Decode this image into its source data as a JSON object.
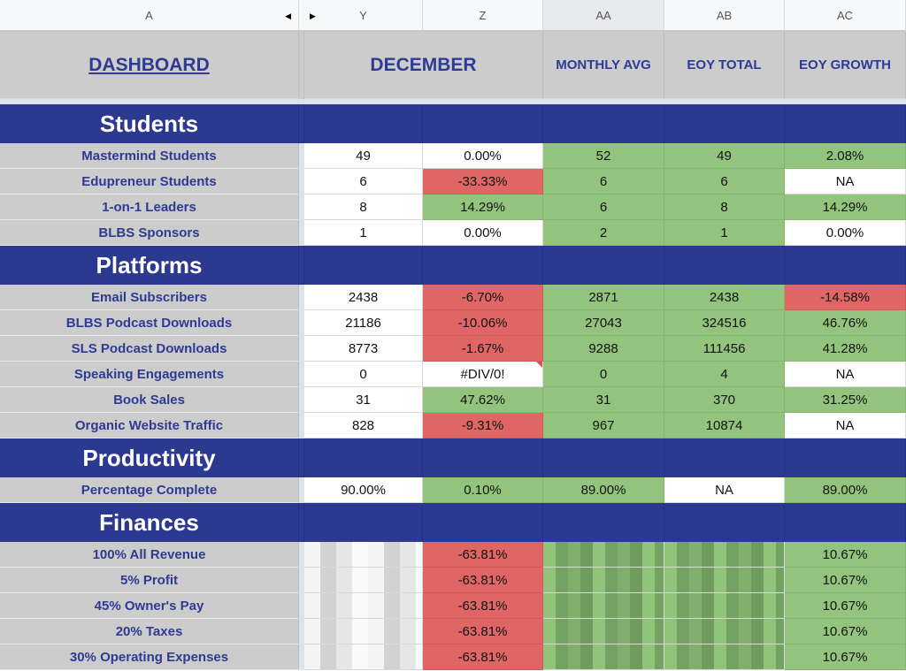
{
  "columns": [
    {
      "key": "A",
      "label": "A"
    },
    {
      "key": "Y",
      "label": "Y"
    },
    {
      "key": "Z",
      "label": "Z"
    },
    {
      "key": "AA",
      "label": "AA",
      "selected": true
    },
    {
      "key": "AB",
      "label": "AB"
    },
    {
      "key": "AC",
      "label": "AC"
    }
  ],
  "header": {
    "dashboard": "DASHBOARD",
    "month": "DECEMBER",
    "monthly_avg": "MONTHLY AVG",
    "eoy_total": "EOY TOTAL",
    "eoy_growth": "EOY GROWTH"
  },
  "colors": {
    "navy": "#2c3991",
    "green": "#93c47d",
    "red": "#e06666",
    "label_gray": "#cccccc",
    "label_text": "#2e3a93"
  },
  "sections": [
    {
      "title": "Students",
      "rows": [
        {
          "label": "Mastermind Students",
          "cells": [
            {
              "v": "49",
              "bg": "w"
            },
            {
              "v": "0.00%",
              "bg": "w"
            },
            {
              "v": "52",
              "bg": "g"
            },
            {
              "v": "49",
              "bg": "g"
            },
            {
              "v": "2.08%",
              "bg": "g"
            }
          ]
        },
        {
          "label": "Edupreneur Students",
          "cells": [
            {
              "v": "6",
              "bg": "w"
            },
            {
              "v": "-33.33%",
              "bg": "r"
            },
            {
              "v": "6",
              "bg": "g"
            },
            {
              "v": "6",
              "bg": "g"
            },
            {
              "v": "NA",
              "bg": "w"
            }
          ]
        },
        {
          "label": "1-on-1 Leaders",
          "cells": [
            {
              "v": "8",
              "bg": "w"
            },
            {
              "v": "14.29%",
              "bg": "g"
            },
            {
              "v": "6",
              "bg": "g"
            },
            {
              "v": "8",
              "bg": "g"
            },
            {
              "v": "14.29%",
              "bg": "g"
            }
          ]
        },
        {
          "label": "BLBS Sponsors",
          "cells": [
            {
              "v": "1",
              "bg": "w"
            },
            {
              "v": "0.00%",
              "bg": "w"
            },
            {
              "v": "2",
              "bg": "g"
            },
            {
              "v": "1",
              "bg": "g"
            },
            {
              "v": "0.00%",
              "bg": "w"
            }
          ]
        }
      ]
    },
    {
      "title": "Platforms",
      "rows": [
        {
          "label": "Email Subscribers",
          "cells": [
            {
              "v": "2438",
              "bg": "w"
            },
            {
              "v": "-6.70%",
              "bg": "r"
            },
            {
              "v": "2871",
              "bg": "g"
            },
            {
              "v": "2438",
              "bg": "g"
            },
            {
              "v": "-14.58%",
              "bg": "r"
            }
          ]
        },
        {
          "label": "BLBS Podcast Downloads",
          "cells": [
            {
              "v": "21186",
              "bg": "w"
            },
            {
              "v": "-10.06%",
              "bg": "r"
            },
            {
              "v": "27043",
              "bg": "g"
            },
            {
              "v": "324516",
              "bg": "g"
            },
            {
              "v": "46.76%",
              "bg": "g"
            }
          ]
        },
        {
          "label": "SLS Podcast Downloads",
          "cells": [
            {
              "v": "8773",
              "bg": "w"
            },
            {
              "v": "-1.67%",
              "bg": "r"
            },
            {
              "v": "9288",
              "bg": "g"
            },
            {
              "v": "111456",
              "bg": "g"
            },
            {
              "v": "41.28%",
              "bg": "g"
            }
          ]
        },
        {
          "label": "Speaking Engagements",
          "cells": [
            {
              "v": "0",
              "bg": "w"
            },
            {
              "v": "#DIV/0!",
              "bg": "w",
              "error": true
            },
            {
              "v": "0",
              "bg": "g"
            },
            {
              "v": "4",
              "bg": "g"
            },
            {
              "v": "NA",
              "bg": "w"
            }
          ]
        },
        {
          "label": "Book Sales",
          "cells": [
            {
              "v": "31",
              "bg": "w"
            },
            {
              "v": "47.62%",
              "bg": "g"
            },
            {
              "v": "31",
              "bg": "g"
            },
            {
              "v": "370",
              "bg": "g"
            },
            {
              "v": "31.25%",
              "bg": "g"
            }
          ]
        },
        {
          "label": "Organic Website Traffic",
          "cells": [
            {
              "v": "828",
              "bg": "w"
            },
            {
              "v": "-9.31%",
              "bg": "r"
            },
            {
              "v": "967",
              "bg": "g"
            },
            {
              "v": "10874",
              "bg": "g"
            },
            {
              "v": "NA",
              "bg": "w"
            }
          ]
        }
      ]
    },
    {
      "title": "Productivity",
      "rows": [
        {
          "label": "Percentage Complete",
          "cells": [
            {
              "v": "90.00%",
              "bg": "w"
            },
            {
              "v": "0.10%",
              "bg": "g"
            },
            {
              "v": "89.00%",
              "bg": "g"
            },
            {
              "v": "NA",
              "bg": "w"
            },
            {
              "v": "89.00%",
              "bg": "g"
            }
          ]
        }
      ]
    },
    {
      "title": "Finances",
      "rows": [
        {
          "label": "100% All Revenue",
          "cells": [
            {
              "v": "",
              "bg": "blurw"
            },
            {
              "v": "-63.81%",
              "bg": "r"
            },
            {
              "v": "",
              "bg": "blurg"
            },
            {
              "v": "",
              "bg": "blurg"
            },
            {
              "v": "10.67%",
              "bg": "g"
            }
          ]
        },
        {
          "label": "5% Profit",
          "cells": [
            {
              "v": "",
              "bg": "blurw"
            },
            {
              "v": "-63.81%",
              "bg": "r"
            },
            {
              "v": "",
              "bg": "blurg"
            },
            {
              "v": "",
              "bg": "blurg"
            },
            {
              "v": "10.67%",
              "bg": "g"
            }
          ]
        },
        {
          "label": "45% Owner's Pay",
          "cells": [
            {
              "v": "",
              "bg": "blurw"
            },
            {
              "v": "-63.81%",
              "bg": "r"
            },
            {
              "v": "",
              "bg": "blurg"
            },
            {
              "v": "",
              "bg": "blurg"
            },
            {
              "v": "10.67%",
              "bg": "g"
            }
          ]
        },
        {
          "label": "20% Taxes",
          "cells": [
            {
              "v": "",
              "bg": "blurw"
            },
            {
              "v": "-63.81%",
              "bg": "r"
            },
            {
              "v": "",
              "bg": "blurg"
            },
            {
              "v": "",
              "bg": "blurg"
            },
            {
              "v": "10.67%",
              "bg": "g"
            }
          ]
        },
        {
          "label": "30% Operating Expenses",
          "cells": [
            {
              "v": "",
              "bg": "blurw"
            },
            {
              "v": "-63.81%",
              "bg": "r"
            },
            {
              "v": "",
              "bg": "blurg"
            },
            {
              "v": "",
              "bg": "blurg"
            },
            {
              "v": "10.67%",
              "bg": "g"
            }
          ]
        }
      ]
    }
  ]
}
